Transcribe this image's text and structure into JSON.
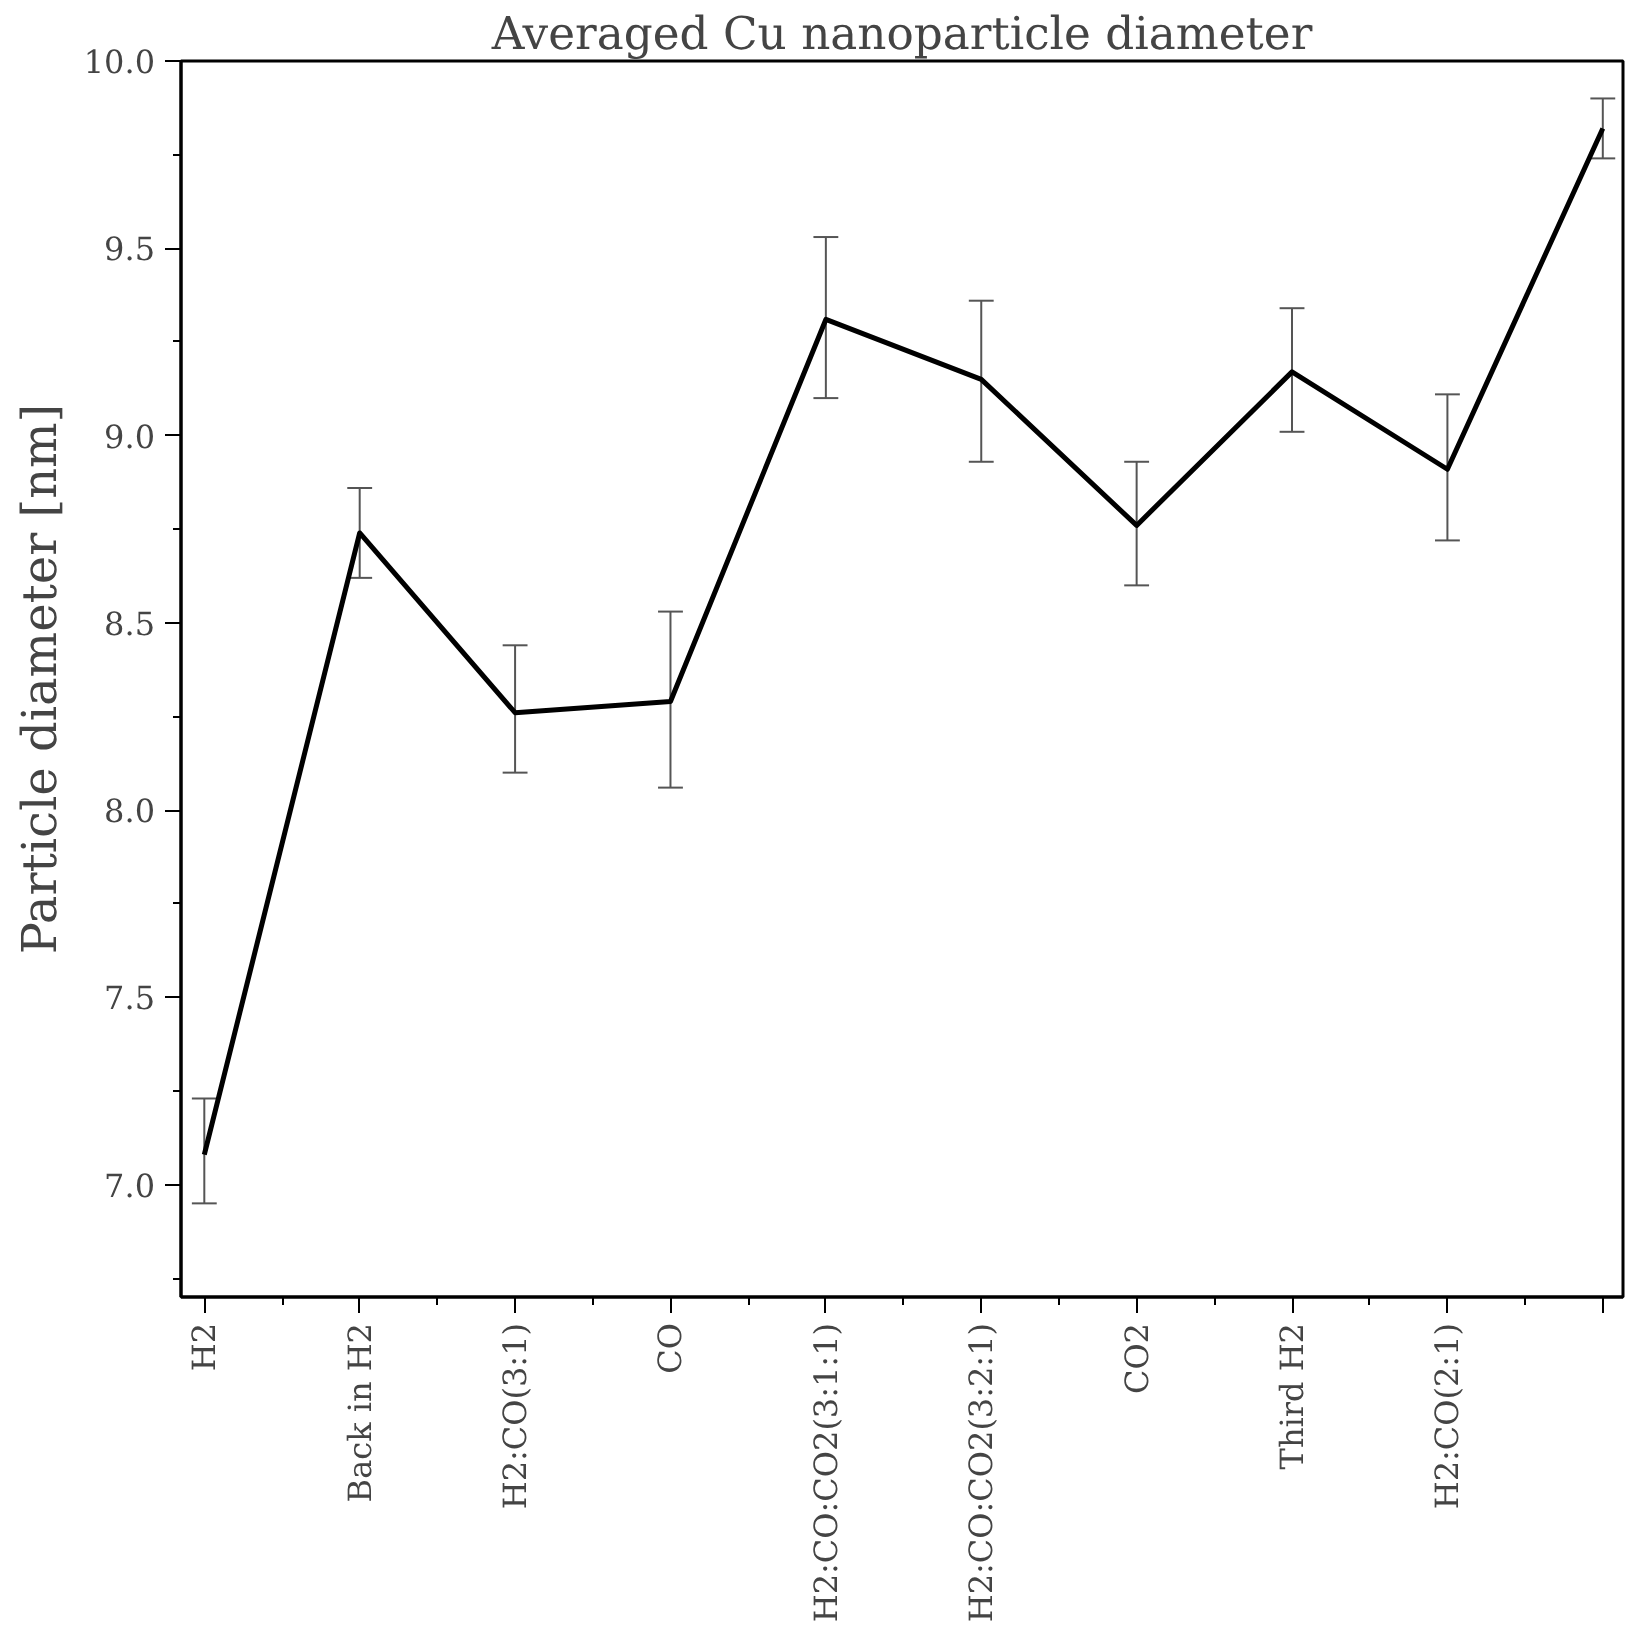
{
  "chart_data": {
    "type": "line",
    "title": "Averaged Cu nanoparticle diameter",
    "ylabel": "Particle diameter [nm]",
    "categories": [
      "H2",
      "Back in H2",
      "H2:CO(3:1)",
      "CO",
      "H2:CO:CO2(3:1:1)",
      "H2:CO:CO2(3:2:1)",
      "CO2",
      "Third H2",
      "H2:CO(2:1)",
      null
    ],
    "series": [
      {
        "color": "#000000",
        "values": [
          7.08,
          8.74,
          8.26,
          8.29,
          9.31,
          9.15,
          8.76,
          9.17,
          8.91,
          9.82
        ],
        "errors": [
          [
            6.95,
            7.23
          ],
          [
            8.62,
            8.86
          ],
          [
            8.1,
            8.44
          ],
          [
            8.06,
            8.53
          ],
          [
            9.1,
            9.53
          ],
          [
            8.93,
            9.36
          ],
          [
            8.6,
            8.93
          ],
          [
            9.01,
            9.34
          ],
          [
            8.72,
            9.11
          ],
          [
            9.74,
            9.9
          ]
        ]
      }
    ],
    "ylim": [
      6.7,
      10.0
    ],
    "yticks": [
      {
        "value": 7,
        "label": "7.0"
      },
      7.5,
      {
        "value": 8,
        "label": "8.0"
      },
      8.5,
      {
        "value": 9,
        "label": "9.0"
      },
      9.5,
      {
        "value": 10,
        "label": "10.0"
      }
    ],
    "grid": false,
    "marker": "none",
    "line_style": "solid"
  }
}
